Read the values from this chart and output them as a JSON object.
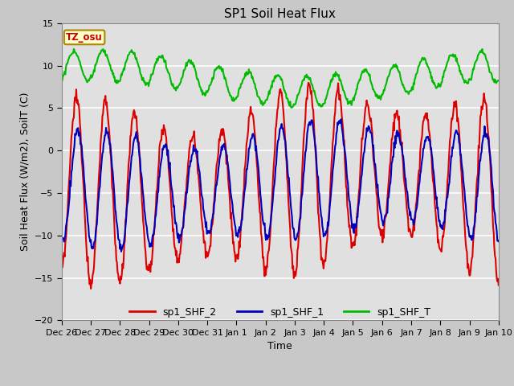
{
  "title": "SP1 Soil Heat Flux",
  "ylabel": "Soil Heat Flux (W/m2), SoilT (C)",
  "xlabel": "Time",
  "ylim": [
    -20,
    15
  ],
  "yticks": [
    -20,
    -15,
    -10,
    -5,
    0,
    5,
    10,
    15
  ],
  "fig_bg_color": "#c8c8c8",
  "plot_bg_color": "#e0e0e0",
  "grid_color": "#ffffff",
  "line_red": "#dd0000",
  "line_blue": "#0000bb",
  "line_green": "#00bb00",
  "tz_label": "TZ_osu",
  "legend_labels": [
    "sp1_SHF_2",
    "sp1_SHF_1",
    "sp1_SHF_T"
  ],
  "x_tick_labels": [
    "Dec 26",
    "Dec 27",
    "Dec 28",
    "Dec 29",
    "Dec 30",
    "Dec 31",
    "Jan 1",
    "Jan 2",
    "Jan 3",
    "Jan 4",
    "Jan 5",
    "Jan 6",
    "Jan 7",
    "Jan 8",
    "Jan 9",
    "Jan 10"
  ],
  "title_fontsize": 11,
  "label_fontsize": 9,
  "tick_fontsize": 8,
  "linewidth": 1.5
}
